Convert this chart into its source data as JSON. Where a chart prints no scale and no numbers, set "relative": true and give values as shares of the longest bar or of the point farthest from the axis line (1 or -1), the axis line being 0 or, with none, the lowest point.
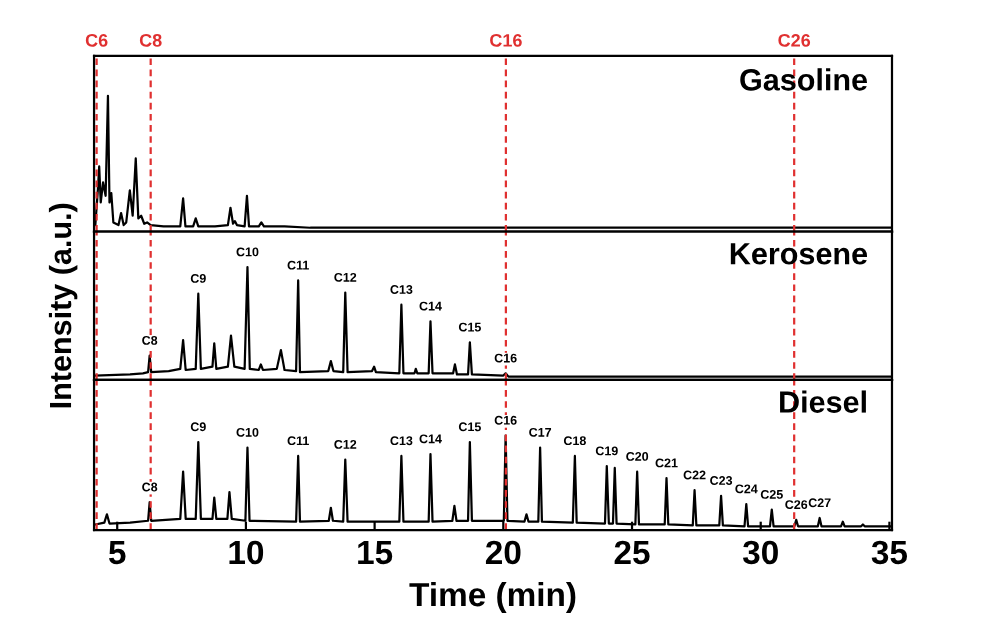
{
  "chart_data": [
    {
      "type": "line",
      "relative": true,
      "xlim": [
        4.1,
        35.1
      ],
      "tick_labels": false,
      "grid": false,
      "legend": false,
      "marker": "none",
      "line_style": "solid",
      "series": [
        {
          "name": "Gasoline",
          "color": "#000000",
          "x": [
            4.15,
            4.25,
            4.3,
            4.36,
            4.45,
            4.55,
            4.64,
            4.7,
            4.77,
            4.85,
            5.05,
            5.15,
            5.25,
            5.35,
            5.49,
            5.6,
            5.72,
            5.82,
            5.93,
            6.05,
            6.16,
            6.3,
            6.8,
            7.45,
            7.56,
            7.65,
            7.95,
            8.05,
            8.15,
            8.8,
            9.3,
            9.4,
            9.5,
            9.57,
            9.65,
            9.95,
            10.04,
            10.12,
            10.5,
            10.6,
            10.7,
            11.5,
            12.5,
            15,
            20,
            25,
            30,
            35.1
          ],
          "values": [
            0.03,
            0.3,
            0.47,
            0.2,
            0.35,
            0.25,
            1.0,
            0.2,
            0.27,
            0.05,
            0.03,
            0.12,
            0.03,
            0.05,
            0.29,
            0.1,
            0.53,
            0.08,
            0.1,
            0.04,
            0.05,
            0.03,
            0.02,
            0.02,
            0.23,
            0.02,
            0.02,
            0.08,
            0.02,
            0.02,
            0.03,
            0.16,
            0.04,
            0.06,
            0.03,
            0.02,
            0.25,
            0.02,
            0.02,
            0.05,
            0.02,
            0.02,
            0.01,
            0.01,
            0.01,
            0.01,
            0.01,
            0.01
          ]
        }
      ],
      "ref_lines": [
        {
          "axis": "x",
          "value": 4.2,
          "label": "C6",
          "color": "#e03030",
          "line_style": "dashed"
        },
        {
          "axis": "x",
          "value": 6.3,
          "label": "C8",
          "color": "#e03030",
          "line_style": "dashed"
        },
        {
          "axis": "x",
          "value": 20.1,
          "label": "C16",
          "color": "#e03030",
          "line_style": "dashed"
        },
        {
          "axis": "x",
          "value": 31.3,
          "label": "C26",
          "color": "#e03030",
          "line_style": "dashed"
        }
      ]
    },
    {
      "type": "line",
      "relative": true,
      "xlim": [
        4.1,
        35.1
      ],
      "tick_labels": false,
      "grid": false,
      "legend": false,
      "marker": "none",
      "line_style": "solid",
      "ylabel": "Intensity (a.u.)",
      "series": [
        {
          "name": "Kerosene",
          "color": "#000000",
          "x": [
            4.15,
            5.5,
            6.0,
            6.2,
            6.26,
            6.32,
            7.0,
            7.45,
            7.56,
            7.66,
            8.05,
            8.15,
            8.25,
            8.7,
            8.77,
            8.85,
            9.3,
            9.42,
            9.55,
            9.95,
            10.06,
            10.15,
            10.5,
            10.58,
            10.66,
            11.2,
            11.36,
            11.5,
            11.95,
            12.03,
            12.1,
            13.2,
            13.3,
            13.4,
            13.78,
            13.86,
            13.95,
            14.9,
            14.98,
            15.05,
            15.96,
            16.04,
            16.12,
            16.55,
            16.6,
            16.66,
            17.1,
            17.17,
            17.25,
            18.05,
            18.12,
            18.2,
            18.63,
            18.7,
            18.78,
            20.0,
            20.09,
            20.2,
            25,
            35.1
          ],
          "values": [
            0.02,
            0.03,
            0.04,
            0.05,
            0.2,
            0.05,
            0.06,
            0.08,
            0.34,
            0.07,
            0.08,
            0.76,
            0.08,
            0.1,
            0.31,
            0.08,
            0.1,
            0.38,
            0.1,
            0.08,
            1.0,
            0.08,
            0.07,
            0.12,
            0.07,
            0.08,
            0.25,
            0.07,
            0.06,
            0.88,
            0.05,
            0.06,
            0.15,
            0.06,
            0.05,
            0.77,
            0.05,
            0.06,
            0.1,
            0.05,
            0.04,
            0.66,
            0.04,
            0.04,
            0.08,
            0.04,
            0.04,
            0.51,
            0.04,
            0.04,
            0.12,
            0.03,
            0.03,
            0.32,
            0.03,
            0.02,
            0.04,
            0.01,
            0.01,
            0.01
          ]
        }
      ],
      "annotations": [
        {
          "text": "C8",
          "x": 6.26,
          "y": 0.2
        },
        {
          "text": "C9",
          "x": 8.15,
          "y": 0.76
        },
        {
          "text": "C10",
          "x": 10.06,
          "y": 1.0
        },
        {
          "text": "C11",
          "x": 12.03,
          "y": 0.88
        },
        {
          "text": "C12",
          "x": 13.86,
          "y": 0.77
        },
        {
          "text": "C13",
          "x": 16.04,
          "y": 0.66
        },
        {
          "text": "C14",
          "x": 17.17,
          "y": 0.51
        },
        {
          "text": "C15",
          "x": 18.7,
          "y": 0.32
        },
        {
          "text": "C16",
          "x": 20.09,
          "y": 0.04
        }
      ],
      "ref_lines": [
        {
          "axis": "x",
          "value": 4.2,
          "color": "#e03030",
          "line_style": "dashed"
        },
        {
          "axis": "x",
          "value": 6.3,
          "color": "#e03030",
          "line_style": "dashed"
        },
        {
          "axis": "x",
          "value": 20.1,
          "color": "#e03030",
          "line_style": "dashed"
        },
        {
          "axis": "x",
          "value": 31.3,
          "color": "#e03030",
          "line_style": "dashed"
        }
      ]
    },
    {
      "type": "line",
      "relative": true,
      "xlim": [
        4.1,
        35.1
      ],
      "xticks": [
        5,
        10,
        15,
        20,
        25,
        30,
        35
      ],
      "tick_labels": "x",
      "grid": false,
      "legend": false,
      "marker": "none",
      "line_style": "solid",
      "xlabel": "Time (min)",
      "series": [
        {
          "name": "Diesel",
          "color": "#000000",
          "x": [
            4.15,
            4.5,
            4.6,
            4.7,
            5.5,
            6.2,
            6.26,
            6.32,
            7.45,
            7.56,
            7.66,
            8.05,
            8.15,
            8.25,
            8.7,
            8.77,
            8.85,
            9.28,
            9.36,
            9.45,
            9.98,
            10.06,
            10.14,
            11.95,
            12.03,
            12.1,
            13.22,
            13.3,
            13.38,
            13.78,
            13.86,
            13.95,
            15.96,
            16.04,
            16.12,
            17.1,
            17.17,
            17.25,
            18.02,
            18.1,
            18.18,
            18.63,
            18.7,
            18.78,
            20.02,
            20.09,
            20.16,
            20.82,
            20.9,
            20.98,
            21.36,
            21.43,
            21.5,
            22.7,
            22.78,
            22.85,
            23.95,
            24.02,
            24.1,
            24.26,
            24.33,
            24.4,
            25.13,
            25.2,
            25.27,
            26.27,
            26.34,
            26.41,
            27.36,
            27.43,
            27.5,
            28.39,
            28.46,
            28.53,
            29.37,
            29.44,
            29.51,
            30.36,
            30.43,
            30.5,
            31.31,
            31.38,
            31.45,
            32.22,
            32.29,
            32.36,
            33.12,
            33.19,
            33.26,
            33.9,
            33.97,
            34.04,
            35.1
          ],
          "values": [
            0.04,
            0.06,
            0.15,
            0.05,
            0.06,
            0.08,
            0.28,
            0.08,
            0.1,
            0.61,
            0.1,
            0.1,
            0.93,
            0.1,
            0.1,
            0.33,
            0.1,
            0.1,
            0.39,
            0.1,
            0.08,
            0.87,
            0.08,
            0.07,
            0.78,
            0.07,
            0.08,
            0.22,
            0.08,
            0.07,
            0.74,
            0.07,
            0.07,
            0.78,
            0.07,
            0.07,
            0.8,
            0.07,
            0.08,
            0.24,
            0.08,
            0.08,
            0.93,
            0.08,
            0.08,
            1.0,
            0.08,
            0.07,
            0.15,
            0.07,
            0.07,
            0.87,
            0.07,
            0.06,
            0.78,
            0.06,
            0.05,
            0.67,
            0.05,
            0.05,
            0.65,
            0.05,
            0.04,
            0.61,
            0.04,
            0.04,
            0.54,
            0.04,
            0.03,
            0.41,
            0.03,
            0.03,
            0.35,
            0.03,
            0.02,
            0.26,
            0.02,
            0.02,
            0.2,
            0.02,
            0.02,
            0.09,
            0.02,
            0.02,
            0.11,
            0.02,
            0.02,
            0.07,
            0.02,
            0.02,
            0.04,
            0.02,
            0.02
          ]
        }
      ],
      "annotations": [
        {
          "text": "C8",
          "x": 6.26,
          "y": 0.28
        },
        {
          "text": "C9",
          "x": 8.15,
          "y": 0.93
        },
        {
          "text": "C10",
          "x": 10.06,
          "y": 0.87
        },
        {
          "text": "C11",
          "x": 12.03,
          "y": 0.78
        },
        {
          "text": "C12",
          "x": 13.86,
          "y": 0.74
        },
        {
          "text": "C13",
          "x": 16.04,
          "y": 0.78
        },
        {
          "text": "C14",
          "x": 17.17,
          "y": 0.8
        },
        {
          "text": "C15",
          "x": 18.7,
          "y": 0.93
        },
        {
          "text": "C16",
          "x": 20.09,
          "y": 1.0
        },
        {
          "text": "C17",
          "x": 21.43,
          "y": 0.87
        },
        {
          "text": "C18",
          "x": 22.78,
          "y": 0.78
        },
        {
          "text": "C19",
          "x": 24.02,
          "y": 0.67
        },
        {
          "text": "C20",
          "x": 25.2,
          "y": 0.61
        },
        {
          "text": "C21",
          "x": 26.34,
          "y": 0.54
        },
        {
          "text": "C22",
          "x": 27.43,
          "y": 0.41
        },
        {
          "text": "C23",
          "x": 28.46,
          "y": 0.35
        },
        {
          "text": "C24",
          "x": 29.44,
          "y": 0.26
        },
        {
          "text": "C25",
          "x": 30.43,
          "y": 0.2
        },
        {
          "text": "C26",
          "x": 31.38,
          "y": 0.09
        },
        {
          "text": "C27",
          "x": 32.29,
          "y": 0.11
        }
      ],
      "ref_lines": [
        {
          "axis": "x",
          "value": 4.2,
          "color": "#e03030",
          "line_style": "dashed"
        },
        {
          "axis": "x",
          "value": 6.3,
          "color": "#e03030",
          "line_style": "dashed"
        },
        {
          "axis": "x",
          "value": 20.1,
          "color": "#e03030",
          "line_style": "dashed"
        },
        {
          "axis": "x",
          "value": 31.3,
          "color": "#e03030",
          "line_style": "dashed"
        }
      ]
    }
  ]
}
